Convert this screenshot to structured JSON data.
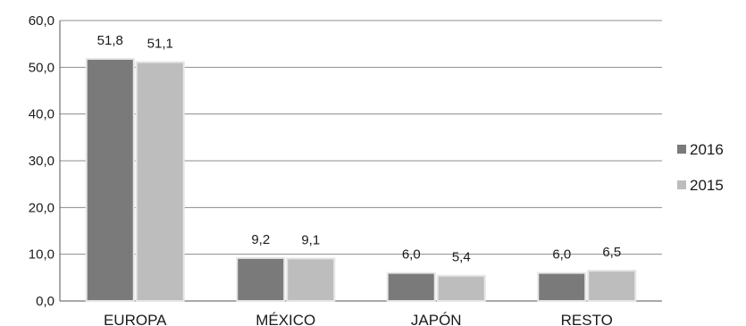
{
  "chart_data": {
    "type": "bar",
    "categories": [
      "EUROPA",
      "MÉXICO",
      "JAPÓN",
      "RESTO"
    ],
    "series": [
      {
        "name": "2016",
        "values": [
          51.8,
          9.2,
          6.0,
          6.0
        ],
        "labels": [
          "51,8",
          "9,2",
          "6,0",
          "6,0"
        ],
        "color": "#7a7a7a"
      },
      {
        "name": "2015",
        "values": [
          51.1,
          9.1,
          5.4,
          6.5
        ],
        "labels": [
          "51,1",
          "9,1",
          "5,4",
          "6,5"
        ],
        "color": "#bdbdbd"
      }
    ],
    "ylim": [
      0,
      60
    ],
    "yticks": [
      "0,0",
      "10,0",
      "20,0",
      "30,0",
      "40,0",
      "50,0",
      "60,0"
    ],
    "grid": true,
    "legend": "right"
  }
}
